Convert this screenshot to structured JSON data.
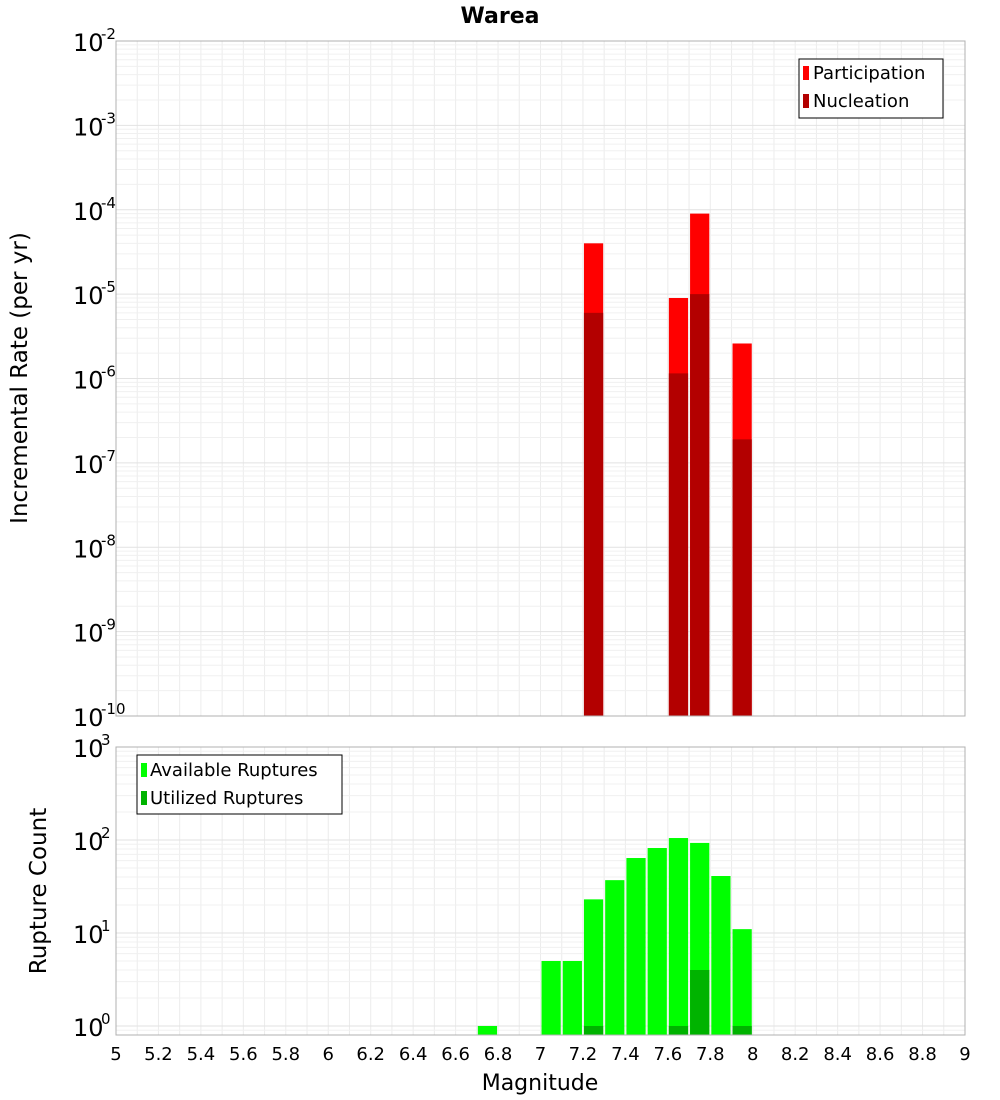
{
  "chart_data": [
    {
      "type": "bar",
      "scale": "log",
      "title": "Warea",
      "xlabel": "",
      "ylabel": "Incremental Rate (per yr)",
      "xlim": [
        5,
        9
      ],
      "ylim": [
        1e-10,
        0.01
      ],
      "y_tick_exponents": [
        "-10",
        "-9",
        "-8",
        "-7",
        "-6",
        "-5",
        "-4",
        "-3",
        "-2"
      ],
      "bin_width": 0.1,
      "legend": {
        "position": "top-right",
        "entries": [
          {
            "label": "Participation",
            "color": "#ff0000"
          },
          {
            "label": "Nucleation",
            "color": "#b30000"
          }
        ]
      },
      "series": [
        {
          "name": "Participation",
          "color": "#ff0000",
          "x": [
            7.25,
            7.65,
            7.75,
            7.95
          ],
          "values": [
            4e-05,
            9e-06,
            9e-05,
            2.6e-06
          ]
        },
        {
          "name": "Nucleation",
          "color": "#b30000",
          "x": [
            7.25,
            7.65,
            7.75,
            7.95
          ],
          "values": [
            6e-06,
            1.15e-06,
            1e-05,
            1.9e-07
          ]
        }
      ]
    },
    {
      "type": "bar",
      "scale": "log",
      "title": "",
      "xlabel": "Magnitude",
      "ylabel": "Rupture Count",
      "xlim": [
        5,
        9
      ],
      "ylim": [
        0.8,
        1000
      ],
      "y_tick_exponents": [
        "0",
        "1",
        "2",
        "3"
      ],
      "x_ticks": [
        "5",
        "5.2",
        "5.4",
        "5.6",
        "5.8",
        "6",
        "6.2",
        "6.4",
        "6.6",
        "6.8",
        "7",
        "7.2",
        "7.4",
        "7.6",
        "7.8",
        "8",
        "8.2",
        "8.4",
        "8.6",
        "8.8",
        "9"
      ],
      "bin_width": 0.1,
      "legend": {
        "position": "top-left",
        "entries": [
          {
            "label": "Available Ruptures",
            "color": "#00ff00"
          },
          {
            "label": "Utilized Ruptures",
            "color": "#00b300"
          }
        ]
      },
      "series": [
        {
          "name": "Available Ruptures",
          "color": "#00ff00",
          "x": [
            6.75,
            7.05,
            7.15,
            7.25,
            7.35,
            7.45,
            7.55,
            7.65,
            7.75,
            7.85,
            7.95
          ],
          "values": [
            1,
            5,
            5,
            23,
            37,
            64,
            82,
            105,
            93,
            41,
            11
          ]
        },
        {
          "name": "Utilized Ruptures",
          "color": "#00b300",
          "x": [
            7.25,
            7.65,
            7.75,
            7.95
          ],
          "values": [
            1,
            1,
            4,
            1
          ]
        }
      ]
    }
  ]
}
